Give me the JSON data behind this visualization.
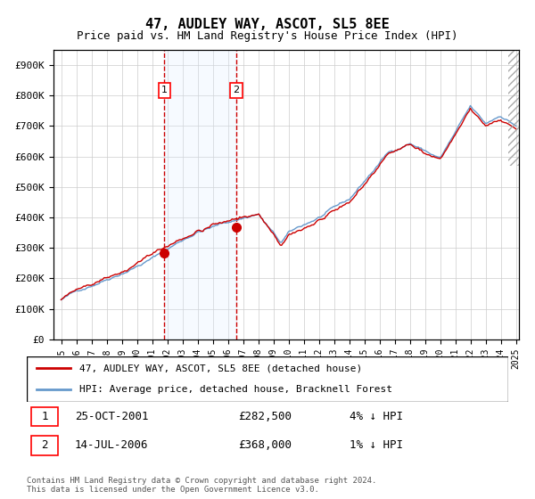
{
  "title": "47, AUDLEY WAY, ASCOT, SL5 8EE",
  "subtitle": "Price paid vs. HM Land Registry's House Price Index (HPI)",
  "xlabel": "",
  "ylabel": "",
  "ylim": [
    0,
    950000
  ],
  "yticks": [
    0,
    100000,
    200000,
    300000,
    400000,
    500000,
    600000,
    700000,
    800000,
    900000
  ],
  "ytick_labels": [
    "£0",
    "£100K",
    "£200K",
    "£300K",
    "£400K",
    "£500K",
    "£600K",
    "£700K",
    "£800K",
    "£900K"
  ],
  "x_start_year": 1995,
  "x_end_year": 2025,
  "hpi_color": "#6699cc",
  "price_color": "#cc0000",
  "sale1_year": 2001.82,
  "sale1_price": 282500,
  "sale2_year": 2006.54,
  "sale2_price": 368000,
  "shade_color": "#ddeeff",
  "dashed_color": "#cc0000",
  "legend_line1": "47, AUDLEY WAY, ASCOT, SL5 8EE (detached house)",
  "legend_line2": "HPI: Average price, detached house, Bracknell Forest",
  "table_row1_label": "1",
  "table_row1_date": "25-OCT-2001",
  "table_row1_price": "£282,500",
  "table_row1_hpi": "4% ↓ HPI",
  "table_row2_label": "2",
  "table_row2_date": "14-JUL-2006",
  "table_row2_price": "£368,000",
  "table_row2_hpi": "1% ↓ HPI",
  "footnote": "Contains HM Land Registry data © Crown copyright and database right 2024.\nThis data is licensed under the Open Government Licence v3.0.",
  "background_color": "#ffffff",
  "grid_color": "#cccccc"
}
